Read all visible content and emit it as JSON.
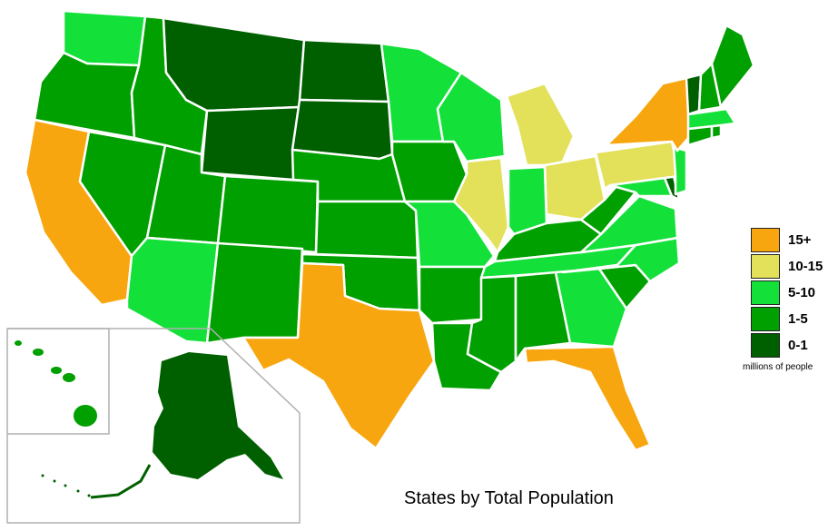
{
  "title": "States by Total Population",
  "legend": {
    "unit": "millions of people",
    "items": [
      {
        "label": "15+",
        "color": "#F8A60F"
      },
      {
        "label": "10-15",
        "color": "#E3E05A"
      },
      {
        "label": "5-10",
        "color": "#14E03A"
      },
      {
        "label": "1-5",
        "color": "#00A000"
      },
      {
        "label": "0-1",
        "color": "#006000"
      }
    ]
  },
  "states": [
    {
      "id": "WA",
      "bin": "5-10"
    },
    {
      "id": "OR",
      "bin": "1-5"
    },
    {
      "id": "CA",
      "bin": "15+"
    },
    {
      "id": "ID",
      "bin": "1-5"
    },
    {
      "id": "NV",
      "bin": "1-5"
    },
    {
      "id": "MT",
      "bin": "0-1"
    },
    {
      "id": "WY",
      "bin": "0-1"
    },
    {
      "id": "UT",
      "bin": "1-5"
    },
    {
      "id": "AZ",
      "bin": "5-10"
    },
    {
      "id": "CO",
      "bin": "1-5"
    },
    {
      "id": "NM",
      "bin": "1-5"
    },
    {
      "id": "ND",
      "bin": "0-1"
    },
    {
      "id": "SD",
      "bin": "0-1"
    },
    {
      "id": "NE",
      "bin": "1-5"
    },
    {
      "id": "KS",
      "bin": "1-5"
    },
    {
      "id": "OK",
      "bin": "1-5"
    },
    {
      "id": "TX",
      "bin": "15+"
    },
    {
      "id": "MN",
      "bin": "5-10"
    },
    {
      "id": "IA",
      "bin": "1-5"
    },
    {
      "id": "MO",
      "bin": "5-10"
    },
    {
      "id": "AR",
      "bin": "1-5"
    },
    {
      "id": "LA",
      "bin": "1-5"
    },
    {
      "id": "WI",
      "bin": "5-10"
    },
    {
      "id": "IL",
      "bin": "10-15"
    },
    {
      "id": "MI",
      "bin": "10-15"
    },
    {
      "id": "IN",
      "bin": "5-10"
    },
    {
      "id": "OH",
      "bin": "10-15"
    },
    {
      "id": "KY",
      "bin": "1-5"
    },
    {
      "id": "TN",
      "bin": "5-10"
    },
    {
      "id": "MS",
      "bin": "1-5"
    },
    {
      "id": "AL",
      "bin": "1-5"
    },
    {
      "id": "GA",
      "bin": "5-10"
    },
    {
      "id": "FL",
      "bin": "15+"
    },
    {
      "id": "SC",
      "bin": "1-5"
    },
    {
      "id": "NC",
      "bin": "5-10"
    },
    {
      "id": "VA",
      "bin": "5-10"
    },
    {
      "id": "WV",
      "bin": "1-5"
    },
    {
      "id": "MD",
      "bin": "5-10"
    },
    {
      "id": "DE",
      "bin": "0-1"
    },
    {
      "id": "PA",
      "bin": "10-15"
    },
    {
      "id": "NJ",
      "bin": "5-10"
    },
    {
      "id": "NY",
      "bin": "15+"
    },
    {
      "id": "CT",
      "bin": "1-5"
    },
    {
      "id": "RI",
      "bin": "1-5"
    },
    {
      "id": "MA",
      "bin": "5-10"
    },
    {
      "id": "VT",
      "bin": "0-1"
    },
    {
      "id": "NH",
      "bin": "1-5"
    },
    {
      "id": "ME",
      "bin": "1-5"
    },
    {
      "id": "AK",
      "bin": "0-1"
    },
    {
      "id": "HI",
      "bin": "1-5"
    }
  ]
}
